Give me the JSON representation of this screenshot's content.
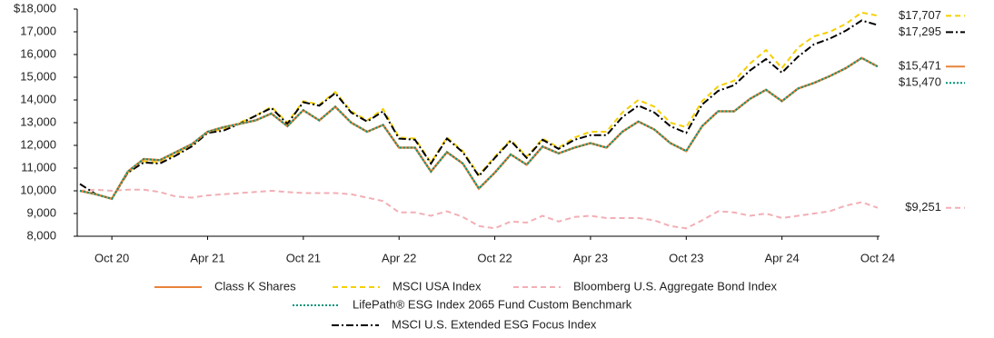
{
  "chart_data": {
    "type": "line",
    "categories": [
      null,
      null,
      "Oct 20",
      null,
      null,
      null,
      null,
      null,
      "Apr 21",
      null,
      null,
      null,
      null,
      null,
      "Oct 21",
      null,
      null,
      null,
      null,
      null,
      "Apr 22",
      null,
      null,
      null,
      null,
      null,
      "Oct 22",
      null,
      null,
      null,
      null,
      null,
      "Apr 23",
      null,
      null,
      null,
      null,
      null,
      "Oct 23",
      null,
      null,
      null,
      null,
      null,
      "Apr 24",
      null,
      null,
      null,
      null,
      null,
      "Oct 24"
    ],
    "ylim": [
      8000,
      18000
    ],
    "yticks": [
      {
        "value": 8000,
        "label": "8,000"
      },
      {
        "value": 9000,
        "label": "9,000"
      },
      {
        "value": 10000,
        "label": "10,000"
      },
      {
        "value": 11000,
        "label": "11,000"
      },
      {
        "value": 12000,
        "label": "12,000"
      },
      {
        "value": 13000,
        "label": "13,000"
      },
      {
        "value": 14000,
        "label": "14,000"
      },
      {
        "value": 15000,
        "label": "15,000"
      },
      {
        "value": 16000,
        "label": "16,000"
      },
      {
        "value": 17000,
        "label": "17,000"
      },
      {
        "value": 18000,
        "label": "$18,000"
      }
    ],
    "series": [
      {
        "name": "Class K Shares",
        "color": "#E8833A",
        "dash": "solid",
        "values": [
          10000,
          9850,
          9650,
          10850,
          11400,
          11350,
          11700,
          12050,
          12600,
          12800,
          12950,
          13100,
          13400,
          12850,
          13550,
          13100,
          13700,
          13000,
          12600,
          12900,
          11900,
          11900,
          10850,
          11700,
          11200,
          10100,
          10800,
          11600,
          11150,
          11950,
          11650,
          11900,
          12100,
          11900,
          12600,
          13050,
          12700,
          12100,
          11750,
          12850,
          13500,
          13500,
          14050,
          14450,
          13950,
          14500,
          14750,
          15050,
          15400,
          15850,
          15471
        ],
        "value_labels": [
          null,
          null,
          null,
          null,
          null,
          null,
          null,
          null,
          null,
          null,
          null,
          null,
          null,
          null,
          null,
          null,
          null,
          null,
          null,
          null,
          null,
          null,
          null,
          null,
          null,
          null,
          null,
          null,
          null,
          null,
          null,
          null,
          null,
          null,
          null,
          null,
          null,
          null,
          null,
          null,
          null,
          null,
          null,
          null,
          null,
          null,
          null,
          null,
          null,
          null,
          "$15,471"
        ]
      },
      {
        "name": "MSCI USA Index",
        "color": "#F5D000",
        "dash": "dashed",
        "values": [
          10000,
          9850,
          9650,
          10800,
          11300,
          11250,
          11600,
          12000,
          12600,
          12700,
          13000,
          13300,
          13700,
          13000,
          13950,
          13800,
          14350,
          13500,
          13100,
          13600,
          12350,
          12300,
          11250,
          12350,
          11750,
          10700,
          11500,
          12250,
          11500,
          12300,
          11900,
          12350,
          12600,
          12600,
          13450,
          14000,
          13700,
          13000,
          12800,
          13950,
          14600,
          14850,
          15600,
          16200,
          15400,
          16300,
          16800,
          17000,
          17350,
          17850,
          17707
        ],
        "value_labels": [
          null,
          null,
          null,
          null,
          null,
          null,
          null,
          null,
          null,
          null,
          null,
          null,
          null,
          null,
          null,
          null,
          null,
          null,
          null,
          null,
          null,
          null,
          null,
          null,
          null,
          null,
          null,
          null,
          null,
          null,
          null,
          null,
          null,
          null,
          null,
          null,
          null,
          null,
          null,
          null,
          null,
          null,
          null,
          null,
          null,
          null,
          null,
          null,
          null,
          null,
          "$17,707"
        ]
      },
      {
        "name": "Bloomberg U.S. Aggregate Bond Index",
        "color": "#F2AFB5",
        "dash": "dashed",
        "values": [
          10000,
          10050,
          10000,
          10050,
          10050,
          9950,
          9750,
          9700,
          9800,
          9850,
          9900,
          9950,
          10000,
          9950,
          9900,
          9900,
          9900,
          9850,
          9700,
          9550,
          9050,
          9050,
          8900,
          9100,
          8850,
          8450,
          8350,
          8650,
          8600,
          8900,
          8650,
          8850,
          8900,
          8800,
          8800,
          8800,
          8700,
          8450,
          8350,
          8700,
          9100,
          9050,
          8900,
          9000,
          8800,
          8900,
          9000,
          9100,
          9350,
          9500,
          9251
        ],
        "value_labels": [
          null,
          null,
          null,
          null,
          null,
          null,
          null,
          null,
          null,
          null,
          null,
          null,
          null,
          null,
          null,
          null,
          null,
          null,
          null,
          null,
          null,
          null,
          null,
          null,
          null,
          null,
          null,
          null,
          null,
          null,
          null,
          null,
          null,
          null,
          null,
          null,
          null,
          null,
          null,
          null,
          null,
          null,
          null,
          null,
          null,
          null,
          null,
          null,
          null,
          null,
          "$9,251"
        ]
      },
      {
        "name": "LifePath® ESG Index 2065 Fund Custom Benchmark",
        "color": "#00957A",
        "dash": "dotted",
        "values": [
          10000,
          9850,
          9650,
          10850,
          11400,
          11350,
          11700,
          12050,
          12600,
          12800,
          12950,
          13100,
          13400,
          12850,
          13550,
          13100,
          13700,
          13000,
          12600,
          12900,
          11900,
          11900,
          10850,
          11700,
          11200,
          10100,
          10800,
          11600,
          11150,
          11950,
          11650,
          11900,
          12100,
          11900,
          12600,
          13050,
          12700,
          12100,
          11750,
          12850,
          13500,
          13500,
          14050,
          14450,
          13950,
          14500,
          14750,
          15050,
          15400,
          15850,
          15470
        ],
        "value_labels": [
          null,
          null,
          null,
          null,
          null,
          null,
          null,
          null,
          null,
          null,
          null,
          null,
          null,
          null,
          null,
          null,
          null,
          null,
          null,
          null,
          null,
          null,
          null,
          null,
          null,
          null,
          null,
          null,
          null,
          null,
          null,
          null,
          null,
          null,
          null,
          null,
          null,
          null,
          null,
          null,
          null,
          null,
          null,
          null,
          null,
          null,
          null,
          null,
          null,
          null,
          "$15,470"
        ]
      },
      {
        "name": "MSCI U.S. Extended ESG Focus Index",
        "color": "#000000",
        "dash": "dash-dot",
        "values": [
          10300,
          9850,
          9650,
          10800,
          11250,
          11200,
          11550,
          11950,
          12550,
          12650,
          12950,
          13300,
          13650,
          12950,
          13900,
          13750,
          14300,
          13450,
          13050,
          13500,
          12300,
          12250,
          11200,
          12300,
          11700,
          10650,
          11450,
          12200,
          11450,
          12250,
          11850,
          12250,
          12450,
          12450,
          13250,
          13750,
          13450,
          12850,
          12550,
          13800,
          14400,
          14650,
          15300,
          15800,
          15200,
          15900,
          16450,
          16700,
          17050,
          17500,
          17295
        ],
        "value_labels": [
          null,
          null,
          null,
          null,
          null,
          null,
          null,
          null,
          null,
          null,
          null,
          null,
          null,
          null,
          null,
          null,
          null,
          null,
          null,
          null,
          null,
          null,
          null,
          null,
          null,
          null,
          null,
          null,
          null,
          null,
          null,
          null,
          null,
          null,
          null,
          null,
          null,
          null,
          null,
          null,
          null,
          null,
          null,
          null,
          null,
          null,
          null,
          null,
          null,
          null,
          "$17,295"
        ]
      }
    ]
  }
}
